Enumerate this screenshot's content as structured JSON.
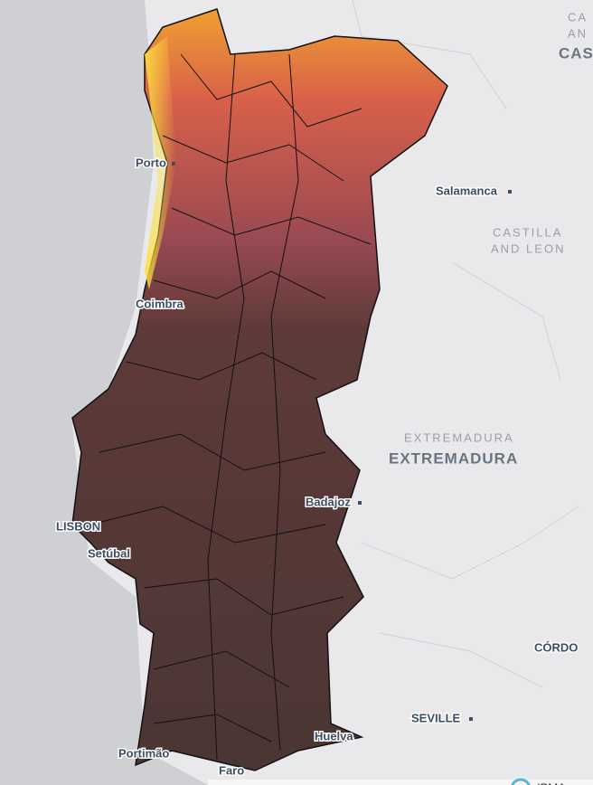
{
  "places": [
    {
      "label": "Porto"
    },
    {
      "label": "Coimbra"
    },
    {
      "label": "LISBON"
    },
    {
      "label": "Setúbal"
    },
    {
      "label": "Portimão"
    },
    {
      "label": "Faro"
    },
    {
      "label": "Huelva"
    },
    {
      "label": "Salamanca"
    },
    {
      "label": "Badajoz"
    },
    {
      "label": "SEVILLE"
    },
    {
      "label": "CÓRDO"
    }
  ],
  "regions": [
    {
      "label": "CA"
    },
    {
      "label": "AN"
    },
    {
      "label": "CAS"
    },
    {
      "label": "CASTILLA"
    },
    {
      "label": "AND LEON"
    },
    {
      "label": "EXTREMADURA"
    },
    {
      "label": "EXTREMADURA"
    }
  ],
  "attribution": "IPMA"
}
